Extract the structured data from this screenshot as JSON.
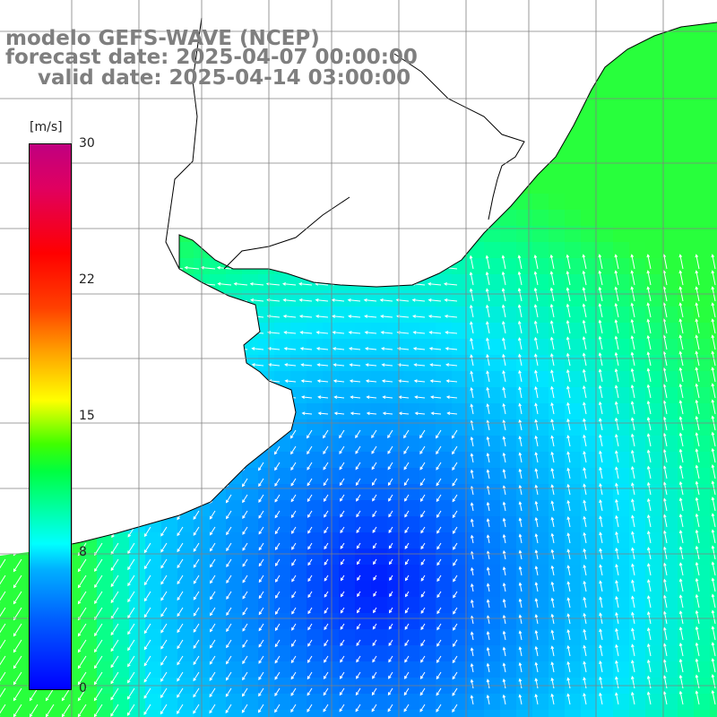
{
  "title": {
    "line1": "modelo GEFS-WAVE (NCEP)",
    "line2": "forecast date: 2025-04-07 00:00:00",
    "line3": "valid date: 2025-04-14 03:00:00"
  },
  "colorbar": {
    "unit": "[m/s]",
    "ticks": [
      "30",
      "22",
      "15",
      "8",
      "0"
    ],
    "tick_values": [
      30,
      22,
      15,
      8,
      0
    ],
    "colors": [
      "#0000ff",
      "#0090ff",
      "#00ffff",
      "#00ff40",
      "#ffff00",
      "#ff8000",
      "#ff0000",
      "#c00080"
    ]
  },
  "map": {
    "variable": "wind speed and direction",
    "land_color": "#ffffff",
    "grid_color": "#808080",
    "coastline_color": "#000000",
    "arrow_color": "#ffffff"
  }
}
